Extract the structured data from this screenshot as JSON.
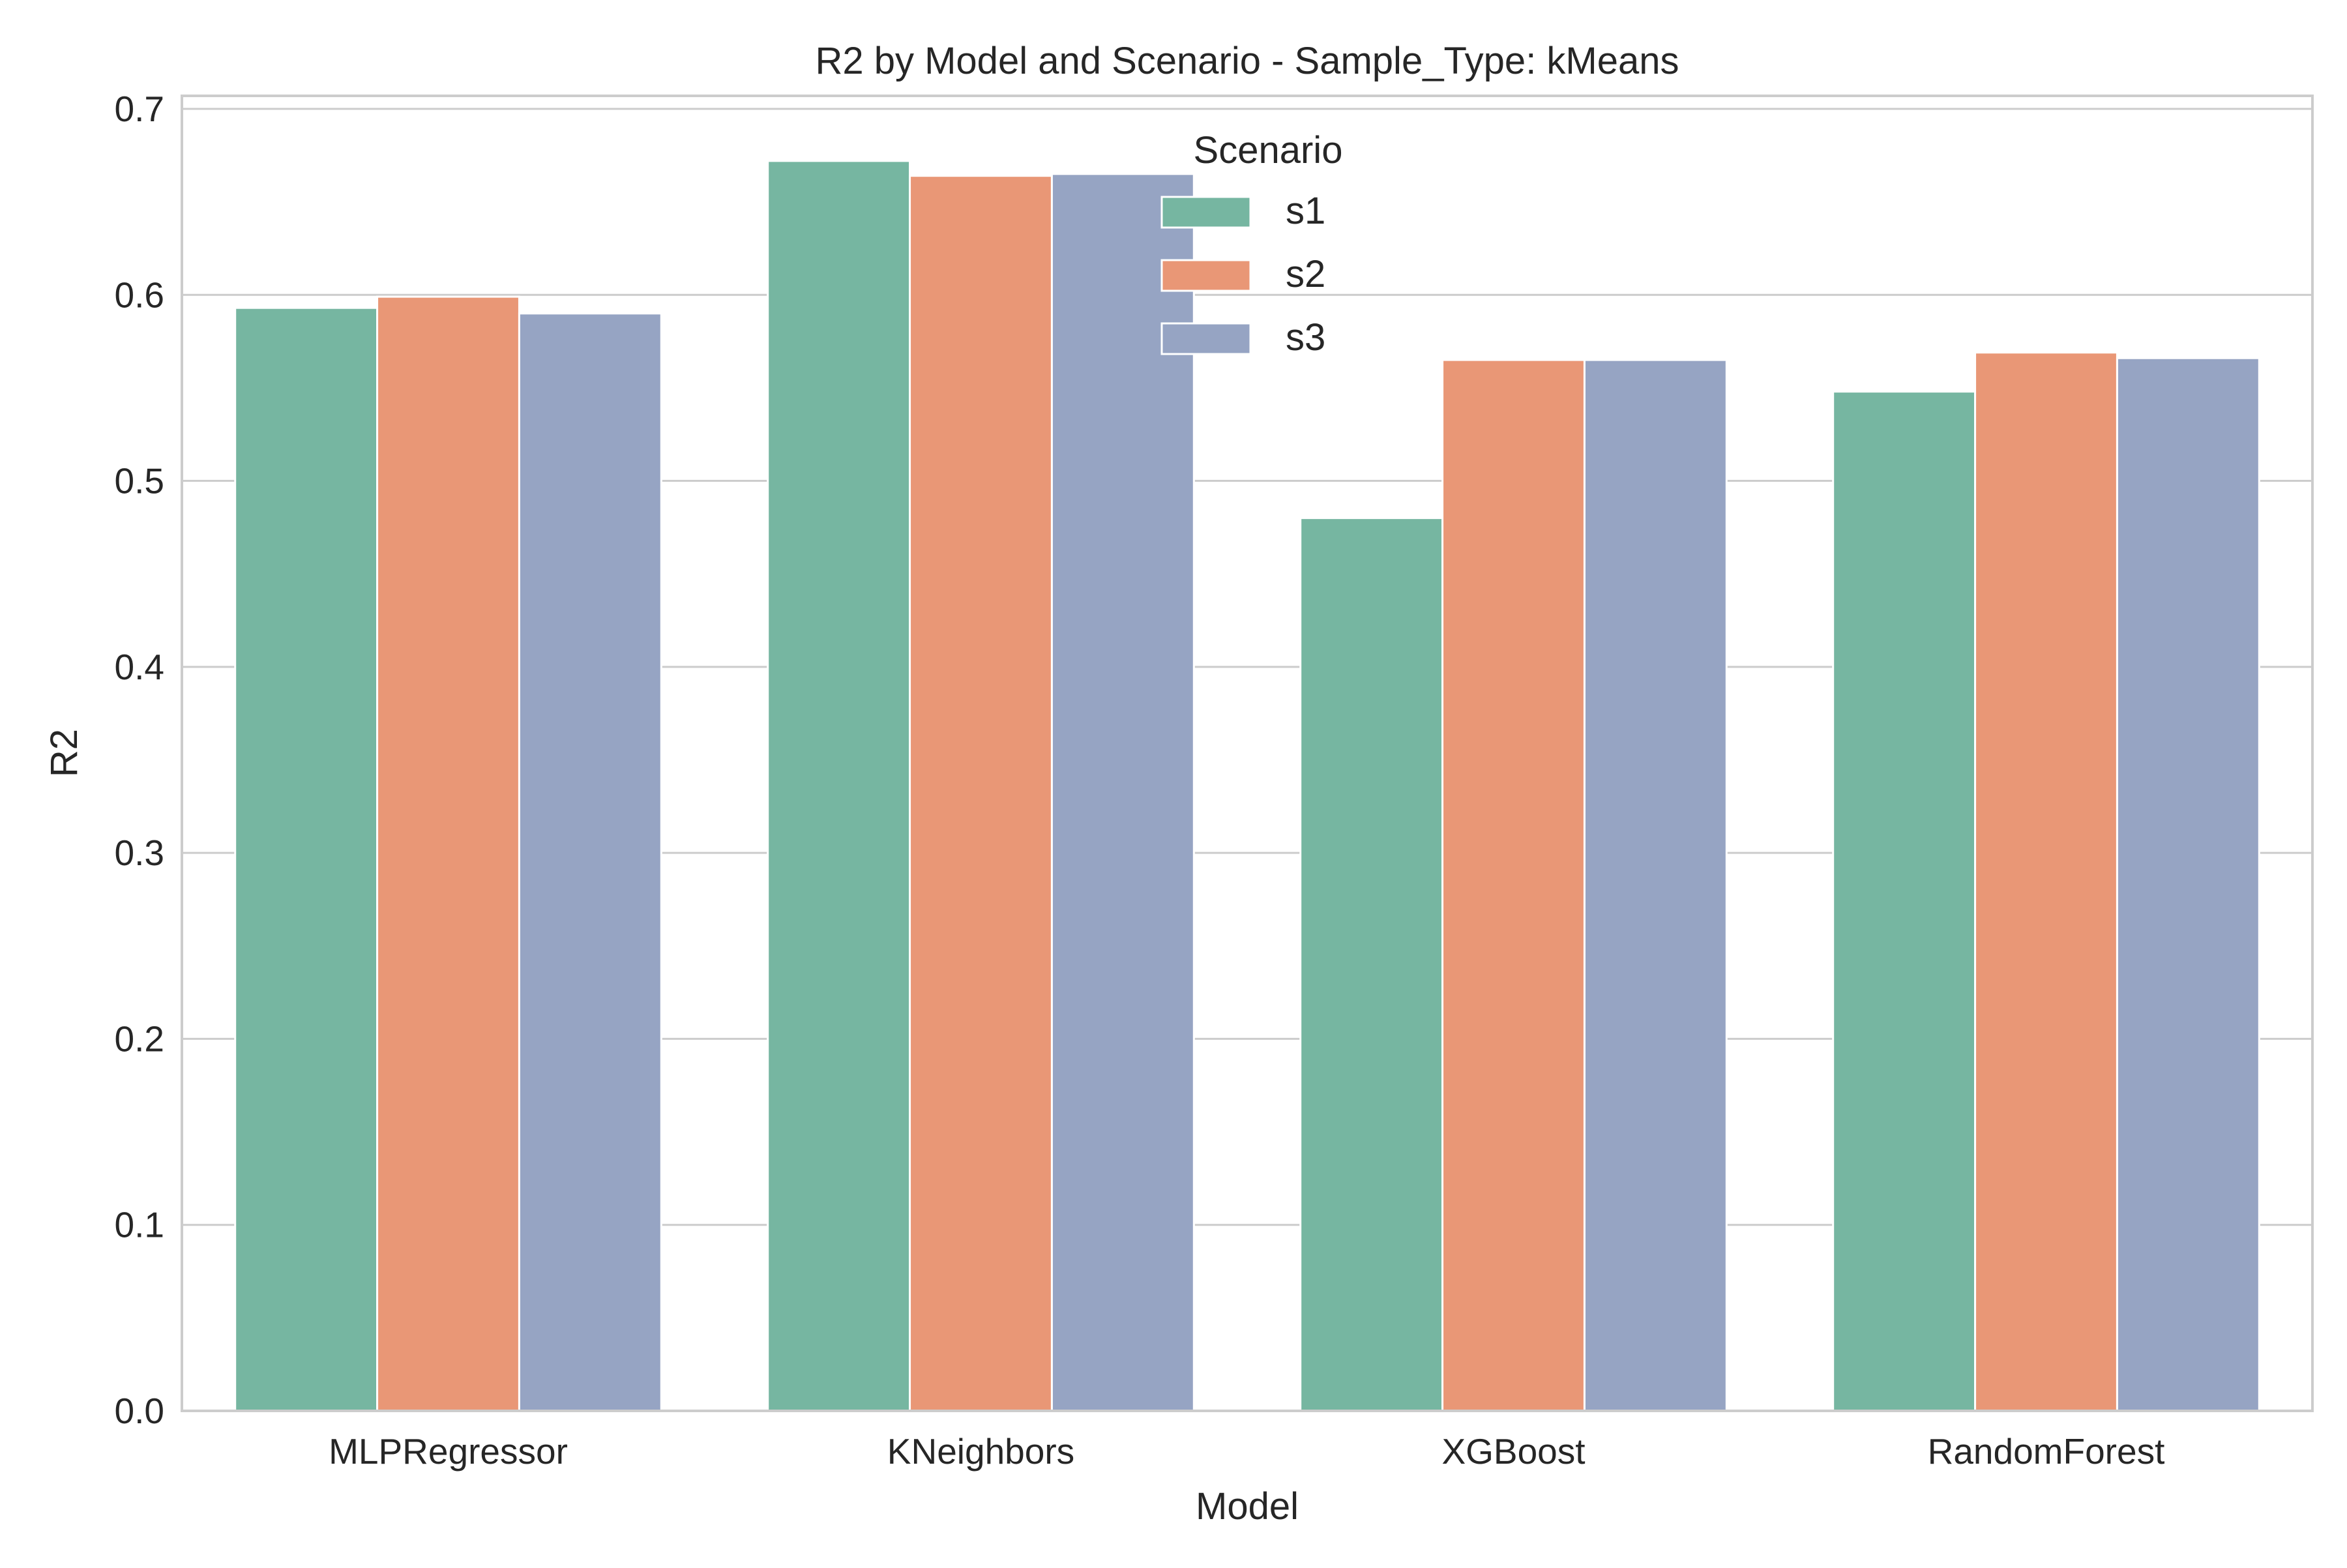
{
  "chart_data": {
    "type": "bar",
    "title": "R2 by Model and Scenario - Sample_Type: kMeans",
    "xlabel": "Model",
    "ylabel": "R2",
    "categories": [
      "MLPRegressor",
      "KNeighbors",
      "XGBoost",
      "RandomForest"
    ],
    "series": [
      {
        "name": "s1",
        "values": [
          0.593,
          0.672,
          0.48,
          0.548
        ],
        "color": "#76b6a1"
      },
      {
        "name": "s2",
        "values": [
          0.599,
          0.664,
          0.565,
          0.569
        ],
        "color": "#e99776"
      },
      {
        "name": "s3",
        "values": [
          0.59,
          0.665,
          0.565,
          0.566
        ],
        "color": "#96a4c3"
      }
    ],
    "ylim": [
      0,
      0.707
    ],
    "yticks": [
      0.0,
      0.1,
      0.2,
      0.3,
      0.4,
      0.5,
      0.6,
      0.7
    ],
    "ytick_labels": [
      "0.0",
      "0.1",
      "0.2",
      "0.3",
      "0.4",
      "0.5",
      "0.6",
      "0.7"
    ],
    "grid": "horizontal",
    "legend": {
      "title": "Scenario",
      "placement": "top-center"
    },
    "colors": {
      "grid": "#cccccc",
      "spine": "#cccccc",
      "text": "#262626",
      "bar_edge": "#ffffff"
    }
  }
}
